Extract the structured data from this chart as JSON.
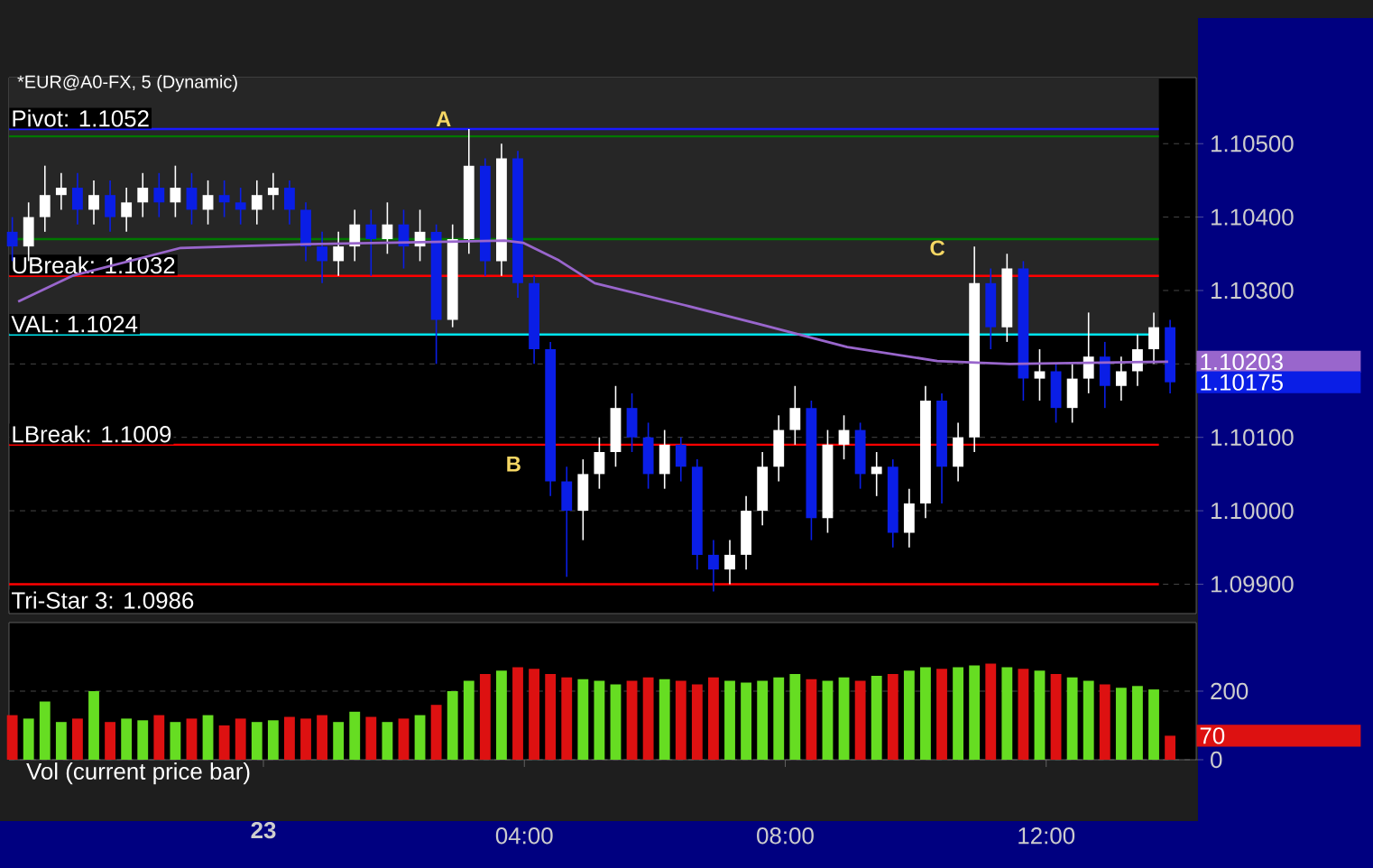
{
  "chart_data": [
    {
      "type": "candlestick",
      "title": "*EUR@A0-FX, 5 (Dynamic)",
      "x": [
        -3.85,
        -3.6,
        -3.35,
        -3.1,
        -2.85,
        -2.6,
        -2.35,
        -2.1,
        -1.85,
        -1.6,
        -1.35,
        -1.1,
        -0.85,
        -0.6,
        -0.35,
        -0.1,
        0.15,
        0.4,
        0.65,
        0.9,
        1.15,
        1.4,
        1.65,
        1.9,
        2.15,
        2.4,
        2.65,
        2.9,
        3.15,
        3.4,
        3.65,
        3.9,
        4.15,
        4.4,
        4.65,
        4.9,
        5.15,
        5.4,
        5.65,
        5.9,
        6.15,
        6.4,
        6.65,
        6.9,
        7.15,
        7.4,
        7.65,
        7.9,
        8.15,
        8.4,
        8.65,
        8.9,
        9.15,
        9.4,
        9.65,
        9.9,
        10.15,
        10.4,
        10.65,
        10.9,
        11.15,
        11.4,
        11.65,
        11.9,
        12.15,
        12.4,
        12.65,
        12.9,
        13.15,
        13.4,
        13.65,
        13.9
      ],
      "ohlc": [
        [
          1.1038,
          1.104,
          1.1034,
          1.1036
        ],
        [
          1.1036,
          1.1042,
          1.1034,
          1.104
        ],
        [
          1.104,
          1.1047,
          1.1038,
          1.1043
        ],
        [
          1.1043,
          1.1046,
          1.1041,
          1.1044
        ],
        [
          1.1044,
          1.1046,
          1.1039,
          1.1041
        ],
        [
          1.1041,
          1.1045,
          1.1039,
          1.1043
        ],
        [
          1.1043,
          1.1045,
          1.1038,
          1.104
        ],
        [
          1.104,
          1.1044,
          1.1038,
          1.1042
        ],
        [
          1.1042,
          1.1046,
          1.104,
          1.1044
        ],
        [
          1.1044,
          1.1046,
          1.104,
          1.1042
        ],
        [
          1.1042,
          1.1047,
          1.104,
          1.1044
        ],
        [
          1.1044,
          1.1046,
          1.1039,
          1.1041
        ],
        [
          1.1041,
          1.1045,
          1.1039,
          1.1043
        ],
        [
          1.1043,
          1.1045,
          1.104,
          1.1042
        ],
        [
          1.1042,
          1.1044,
          1.1039,
          1.1041
        ],
        [
          1.1041,
          1.1045,
          1.1039,
          1.1043
        ],
        [
          1.1043,
          1.1046,
          1.1041,
          1.1044
        ],
        [
          1.1044,
          1.1045,
          1.1039,
          1.1041
        ],
        [
          1.1041,
          1.1042,
          1.1034,
          1.1036
        ],
        [
          1.1036,
          1.1038,
          1.1031,
          1.1034
        ],
        [
          1.1034,
          1.1038,
          1.1032,
          1.1036
        ],
        [
          1.1036,
          1.1041,
          1.1034,
          1.1039
        ],
        [
          1.1039,
          1.1041,
          1.1032,
          1.1037
        ],
        [
          1.1037,
          1.1042,
          1.1035,
          1.1039
        ],
        [
          1.1039,
          1.1041,
          1.1033,
          1.1036
        ],
        [
          1.1036,
          1.1041,
          1.1034,
          1.1038
        ],
        [
          1.1038,
          1.1039,
          1.102,
          1.1026
        ],
        [
          1.1026,
          1.1039,
          1.1025,
          1.1037
        ],
        [
          1.1037,
          1.1052,
          1.1035,
          1.1047
        ],
        [
          1.1047,
          1.1048,
          1.1032,
          1.1034
        ],
        [
          1.1034,
          1.105,
          1.1032,
          1.1048
        ],
        [
          1.1048,
          1.1049,
          1.1029,
          1.1031
        ],
        [
          1.1031,
          1.1032,
          1.102,
          1.1022
        ],
        [
          1.1022,
          1.1023,
          1.1002,
          1.1004
        ],
        [
          1.1004,
          1.1006,
          1.0991,
          1.1
        ],
        [
          1.1,
          1.1007,
          1.0996,
          1.1005
        ],
        [
          1.1005,
          1.101,
          1.1003,
          1.1008
        ],
        [
          1.1008,
          1.1017,
          1.1006,
          1.1014
        ],
        [
          1.1014,
          1.1016,
          1.1008,
          1.101
        ],
        [
          1.101,
          1.1012,
          1.1003,
          1.1005
        ],
        [
          1.1005,
          1.1011,
          1.1003,
          1.1009
        ],
        [
          1.1009,
          1.101,
          1.1004,
          1.1006
        ],
        [
          1.1006,
          1.1007,
          1.0992,
          1.0994
        ],
        [
          1.0994,
          1.0996,
          1.0989,
          1.0992
        ],
        [
          1.0992,
          1.0996,
          1.099,
          1.0994
        ],
        [
          1.0994,
          1.1002,
          1.0992,
          1.1
        ],
        [
          1.1,
          1.1008,
          1.0998,
          1.1006
        ],
        [
          1.1006,
          1.1013,
          1.1004,
          1.1011
        ],
        [
          1.1011,
          1.1017,
          1.1009,
          1.1014
        ],
        [
          1.1014,
          1.1015,
          1.0996,
          1.0999
        ],
        [
          1.0999,
          1.1011,
          1.0997,
          1.1009
        ],
        [
          1.1009,
          1.1013,
          1.1007,
          1.1011
        ],
        [
          1.1011,
          1.1012,
          1.1003,
          1.1005
        ],
        [
          1.1005,
          1.1008,
          1.1002,
          1.1006
        ],
        [
          1.1006,
          1.1007,
          1.0995,
          1.0997
        ],
        [
          1.0997,
          1.1003,
          1.0995,
          1.1001
        ],
        [
          1.1001,
          1.1017,
          1.0999,
          1.1015
        ],
        [
          1.1015,
          1.1016,
          1.1001,
          1.1006
        ],
        [
          1.1006,
          1.1012,
          1.1004,
          1.101
        ],
        [
          1.101,
          1.1036,
          1.1008,
          1.1031
        ],
        [
          1.1031,
          1.1033,
          1.1022,
          1.1025
        ],
        [
          1.1025,
          1.1035,
          1.1023,
          1.1033
        ],
        [
          1.1033,
          1.1034,
          1.1015,
          1.1018
        ],
        [
          1.1018,
          1.1022,
          1.1015,
          1.1019
        ],
        [
          1.1019,
          1.102,
          1.1012,
          1.1014
        ],
        [
          1.1014,
          1.102,
          1.1012,
          1.1018
        ],
        [
          1.1018,
          1.1027,
          1.1016,
          1.1021
        ],
        [
          1.1021,
          1.1023,
          1.1014,
          1.1017
        ],
        [
          1.1017,
          1.1021,
          1.1015,
          1.1019
        ],
        [
          1.1019,
          1.1024,
          1.1017,
          1.1022
        ],
        [
          1.1022,
          1.1027,
          1.102,
          1.1025
        ],
        [
          1.1025,
          1.1026,
          1.1016,
          1.10175
        ]
      ],
      "colors": [
        "#0a1ee6",
        "#ffffff",
        "#ffffff",
        "#ffffff",
        "#0a1ee6",
        "#ffffff",
        "#0a1ee6",
        "#ffffff",
        "#ffffff",
        "#0a1ee6",
        "#ffffff",
        "#0a1ee6",
        "#ffffff",
        "#0a1ee6",
        "#0a1ee6",
        "#ffffff",
        "#ffffff",
        "#0a1ee6",
        "#0a1ee6",
        "#0a1ee6",
        "#ffffff",
        "#ffffff",
        "#0a1ee6",
        "#ffffff",
        "#0a1ee6",
        "#ffffff",
        "#0a1ee6",
        "#ffffff",
        "#ffffff",
        "#0a1ee6",
        "#ffffff",
        "#0a1ee6",
        "#0a1ee6",
        "#0a1ee6",
        "#0a1ee6",
        "#ffffff",
        "#ffffff",
        "#ffffff",
        "#0a1ee6",
        "#0a1ee6",
        "#ffffff",
        "#0a1ee6",
        "#0a1ee6",
        "#0a1ee6",
        "#ffffff",
        "#ffffff",
        "#ffffff",
        "#ffffff",
        "#ffffff",
        "#0a1ee6",
        "#ffffff",
        "#ffffff",
        "#0a1ee6",
        "#ffffff",
        "#0a1ee6",
        "#ffffff",
        "#ffffff",
        "#0a1ee6",
        "#ffffff",
        "#ffffff",
        "#0a1ee6",
        "#ffffff",
        "#0a1ee6",
        "#ffffff",
        "#0a1ee6",
        "#ffffff",
        "#ffffff",
        "#0a1ee6",
        "#ffffff",
        "#ffffff",
        "#ffffff",
        "#0a1ee6"
      ],
      "series": [
        {
          "type": "line",
          "color": "#9966cc",
          "x": [
            -3.76,
            -2.93,
            -1.27,
            0.66,
            3.7,
            3.98,
            4.53,
            5.08,
            6.46,
            7.57,
            8.95,
            10.33,
            11.44,
            13.87
          ],
          "values": [
            1.10285,
            1.1032,
            1.10358,
            1.10363,
            1.10368,
            1.10365,
            1.10341,
            1.1031,
            1.1028,
            1.10255,
            1.10223,
            1.10204,
            1.102,
            1.10203
          ]
        }
      ],
      "xlim": [
        -3.9,
        14.3
      ],
      "ylim": [
        1.0986,
        1.1059
      ],
      "yticks": [
        {
          "value": 1.099,
          "label": "1.09900"
        },
        {
          "value": 1.1,
          "label": "1.10000"
        },
        {
          "value": 1.101,
          "label": "1.10100"
        },
        {
          "value": 1.102,
          "label": null
        },
        {
          "value": 1.103,
          "label": "1.10300"
        },
        {
          "value": 1.104,
          "label": "1.10400"
        },
        {
          "value": 1.105,
          "label": "1.10500"
        }
      ],
      "tick_labels": "y",
      "grid": "y",
      "bands": [
        {
          "axis": "y",
          "from": 1.1024,
          "to": 1.1059,
          "color": "#262626"
        }
      ],
      "ref_lines": [
        {
          "axis": "y",
          "value": 1.1052,
          "label": "Pivot: 1.1052",
          "color": "#1a1aff"
        },
        {
          "axis": "y",
          "value": 1.1051,
          "color": "#007700"
        },
        {
          "axis": "y",
          "value": 1.1037,
          "color": "#007700"
        },
        {
          "axis": "y",
          "value": 1.1032,
          "label": "UBreak: 1.1032",
          "color": "#ff0000"
        },
        {
          "axis": "y",
          "value": 1.1024,
          "label": "VAL: 1.1024",
          "color": "#00e5ee"
        },
        {
          "axis": "y",
          "value": 1.1009,
          "label": "LBreak: 1.1009",
          "color": "#ff0000"
        },
        {
          "axis": "y",
          "value": 1.099,
          "color": "#ff0000"
        }
      ],
      "annotations": [
        "A",
        "B",
        "C",
        "1.10203",
        "1.10175",
        "Tri-Star 3: 1.0986"
      ]
    },
    {
      "type": "bar",
      "title": "Vol (current price bar)",
      "x": [
        -3.85,
        -3.6,
        -3.35,
        -3.1,
        -2.85,
        -2.6,
        -2.35,
        -2.1,
        -1.85,
        -1.6,
        -1.35,
        -1.1,
        -0.85,
        -0.6,
        -0.35,
        -0.1,
        0.15,
        0.4,
        0.65,
        0.9,
        1.15,
        1.4,
        1.65,
        1.9,
        2.15,
        2.4,
        2.65,
        2.9,
        3.15,
        3.4,
        3.65,
        3.9,
        4.15,
        4.4,
        4.65,
        4.9,
        5.15,
        5.4,
        5.65,
        5.9,
        6.15,
        6.4,
        6.65,
        6.9,
        7.15,
        7.4,
        7.65,
        7.9,
        8.15,
        8.4,
        8.65,
        8.9,
        9.15,
        9.4,
        9.65,
        9.9,
        10.15,
        10.4,
        10.65,
        10.9,
        11.15,
        11.4,
        11.65,
        11.9,
        12.15,
        12.4,
        12.65,
        12.9,
        13.15,
        13.4,
        13.65,
        13.9
      ],
      "values": [
        130,
        120,
        170,
        110,
        120,
        200,
        110,
        120,
        115,
        130,
        110,
        120,
        130,
        100,
        120,
        110,
        115,
        125,
        120,
        130,
        110,
        140,
        125,
        110,
        120,
        130,
        160,
        200,
        230,
        250,
        260,
        270,
        265,
        250,
        240,
        235,
        230,
        220,
        230,
        240,
        235,
        230,
        220,
        240,
        230,
        225,
        230,
        240,
        250,
        235,
        230,
        240,
        230,
        245,
        250,
        260,
        270,
        265,
        270,
        275,
        280,
        270,
        265,
        260,
        250,
        240,
        230,
        220,
        210,
        215,
        205,
        70
      ],
      "colors": [
        "#dd1111",
        "#66dd22",
        "#66dd22",
        "#66dd22",
        "#dd1111",
        "#66dd22",
        "#dd1111",
        "#66dd22",
        "#66dd22",
        "#dd1111",
        "#66dd22",
        "#dd1111",
        "#66dd22",
        "#dd1111",
        "#dd1111",
        "#66dd22",
        "#66dd22",
        "#dd1111",
        "#dd1111",
        "#dd1111",
        "#66dd22",
        "#66dd22",
        "#dd1111",
        "#66dd22",
        "#dd1111",
        "#66dd22",
        "#dd1111",
        "#66dd22",
        "#66dd22",
        "#dd1111",
        "#66dd22",
        "#dd1111",
        "#dd1111",
        "#dd1111",
        "#dd1111",
        "#66dd22",
        "#66dd22",
        "#66dd22",
        "#dd1111",
        "#dd1111",
        "#66dd22",
        "#dd1111",
        "#dd1111",
        "#dd1111",
        "#66dd22",
        "#66dd22",
        "#66dd22",
        "#66dd22",
        "#66dd22",
        "#dd1111",
        "#66dd22",
        "#66dd22",
        "#dd1111",
        "#66dd22",
        "#dd1111",
        "#66dd22",
        "#66dd22",
        "#dd1111",
        "#66dd22",
        "#66dd22",
        "#dd1111",
        "#66dd22",
        "#dd1111",
        "#66dd22",
        "#dd1111",
        "#66dd22",
        "#66dd22",
        "#dd1111",
        "#66dd22",
        "#66dd22",
        "#66dd22",
        "#dd1111"
      ],
      "xlim": [
        -3.9,
        14.3
      ],
      "ylim": [
        0,
        400
      ],
      "yticks": [
        0,
        200
      ],
      "xticks": [
        {
          "value": 0,
          "label": null
        },
        {
          "value": 4,
          "label": "04:00"
        },
        {
          "value": 8,
          "label": "08:00"
        },
        {
          "value": 12,
          "label": "12:00"
        }
      ],
      "grid": "y",
      "annotations": [
        "70",
        "23"
      ]
    }
  ]
}
